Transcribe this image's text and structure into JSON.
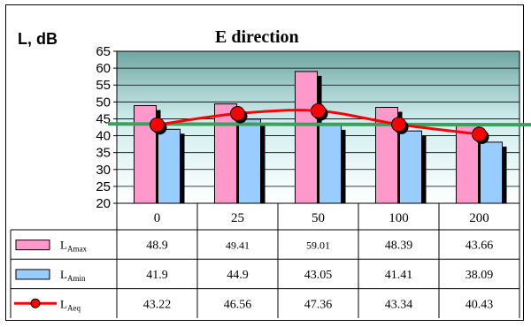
{
  "chart_data": {
    "type": "bar",
    "title": "E direction",
    "ylabel": "L, dB",
    "ylim": [
      20,
      65
    ],
    "yticks": [
      20,
      25,
      30,
      35,
      40,
      45,
      50,
      55,
      60,
      65
    ],
    "grid": true,
    "categories": [
      "0",
      "25",
      "50",
      "100",
      "200"
    ],
    "reference_line": 43.5,
    "series": [
      {
        "name": "L",
        "sub": "Amax",
        "type": "bar",
        "color": "#ff99cc",
        "values": [
          48.9,
          49.41,
          59.01,
          48.39,
          43.66
        ],
        "labels": [
          "48.9",
          "49.41",
          "59.01",
          "48.39",
          "43.66"
        ]
      },
      {
        "name": "L",
        "sub": "Amin",
        "type": "bar",
        "color": "#99ccff",
        "values": [
          41.9,
          44.9,
          43.05,
          41.41,
          38.09
        ],
        "labels": [
          "41.9",
          "44.9",
          "43.05",
          "41.41",
          "38.09"
        ]
      },
      {
        "name": "L",
        "sub": "Aeq",
        "type": "line",
        "color": "#ff0000",
        "values": [
          43.22,
          46.56,
          47.36,
          43.34,
          40.43
        ],
        "labels": [
          "43.22",
          "46.56",
          "47.36",
          "43.34",
          "40.43"
        ]
      }
    ]
  }
}
